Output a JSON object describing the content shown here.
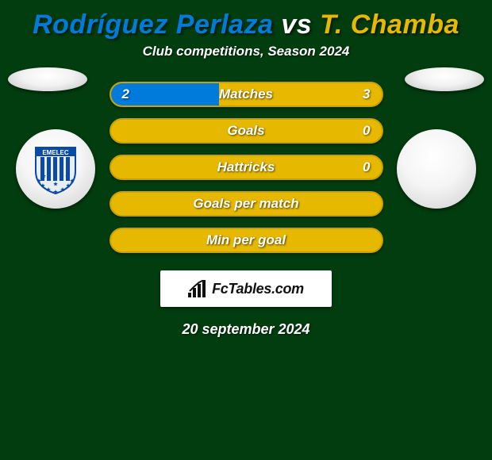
{
  "header": {
    "player1": "Rodríguez Perlaza",
    "vs": "vs",
    "player2": "T. Chamba",
    "subtitle": "Club competitions, Season 2024",
    "player1_color": "#007bdc",
    "player2_color": "#e6b800"
  },
  "bars": {
    "track_bg": "#e6b800",
    "track_border": "#caa200",
    "fill_bg": "#007bdc",
    "label_color": "#ffffff",
    "rows": [
      {
        "label": "Matches",
        "left": "2",
        "right": "3",
        "fill_pct": 40
      },
      {
        "label": "Goals",
        "left": "",
        "right": "0",
        "fill_pct": 0
      },
      {
        "label": "Hattricks",
        "left": "",
        "right": "0",
        "fill_pct": 0
      },
      {
        "label": "Goals per match",
        "left": "",
        "right": "",
        "fill_pct": 0
      },
      {
        "label": "Min per goal",
        "left": "",
        "right": "",
        "fill_pct": 0
      }
    ]
  },
  "footer": {
    "brand": "FcTables.com",
    "date": "20 september 2024"
  },
  "club_badge": {
    "name": "EMELEC",
    "stripe_color": "#0a4aa6",
    "bg_color": "#e9eef5",
    "star_color": "#0a4aa6"
  }
}
